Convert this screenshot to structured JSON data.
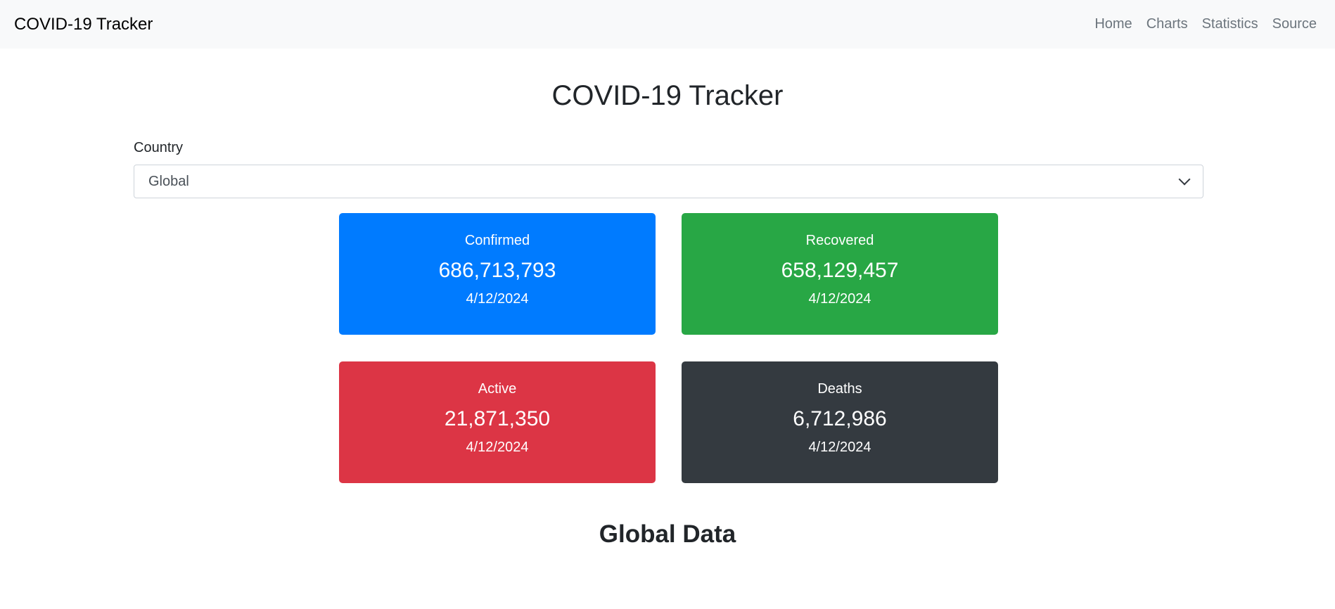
{
  "navbar": {
    "brand": "COVID-19 Tracker",
    "links": [
      "Home",
      "Charts",
      "Statistics",
      "Source"
    ]
  },
  "main": {
    "title": "COVID-19 Tracker",
    "country_label": "Country",
    "country_selected": "Global",
    "cards": [
      {
        "title": "Confirmed",
        "value": "686,713,793",
        "date": "4/12/2024",
        "color": "#007bff"
      },
      {
        "title": "Recovered",
        "value": "658,129,457",
        "date": "4/12/2024",
        "color": "#28a745"
      },
      {
        "title": "Active",
        "value": "21,871,350",
        "date": "4/12/2024",
        "color": "#dc3545"
      },
      {
        "title": "Deaths",
        "value": "6,712,986",
        "date": "4/12/2024",
        "color": "#343a40"
      }
    ],
    "section_title": "Global Data"
  }
}
